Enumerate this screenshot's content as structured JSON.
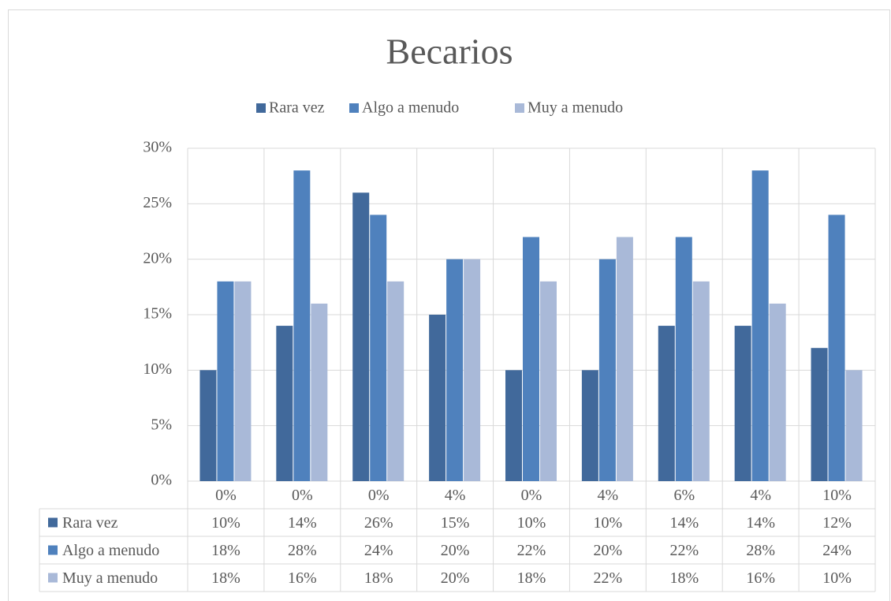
{
  "chart_data": {
    "type": "bar",
    "title": "Becarios",
    "categories": [
      "0%",
      "0%",
      "0%",
      "4%",
      "0%",
      "4%",
      "6%",
      "4%",
      "10%"
    ],
    "series": [
      {
        "name": "Rara vez",
        "color": "#41699b",
        "values": [
          10,
          14,
          26,
          15,
          10,
          10,
          14,
          14,
          12
        ],
        "value_labels": [
          "10%",
          "14%",
          "26%",
          "15%",
          "10%",
          "10%",
          "14%",
          "14%",
          "12%"
        ]
      },
      {
        "name": "Algo a menudo",
        "color": "#4f81bd",
        "values": [
          18,
          28,
          24,
          20,
          22,
          20,
          22,
          28,
          24
        ],
        "value_labels": [
          "18%",
          "28%",
          "24%",
          "20%",
          "22%",
          "20%",
          "22%",
          "28%",
          "24%"
        ]
      },
      {
        "name": "Muy a menudo",
        "color": "#a9b9d8",
        "values": [
          18,
          16,
          18,
          20,
          18,
          22,
          18,
          16,
          10
        ],
        "value_labels": [
          "18%",
          "16%",
          "18%",
          "20%",
          "18%",
          "22%",
          "18%",
          "16%",
          "10%"
        ]
      }
    ],
    "ylim": [
      0,
      30
    ],
    "yticks": [
      {
        "value": 0,
        "label": "0%"
      },
      {
        "value": 5,
        "label": "5%"
      },
      {
        "value": 10,
        "label": "10%"
      },
      {
        "value": 15,
        "label": "15%"
      },
      {
        "value": 20,
        "label": "20%"
      },
      {
        "value": 25,
        "label": "25%"
      },
      {
        "value": 30,
        "label": "30%"
      }
    ],
    "grid": true,
    "legend": "top",
    "data_table": true
  }
}
